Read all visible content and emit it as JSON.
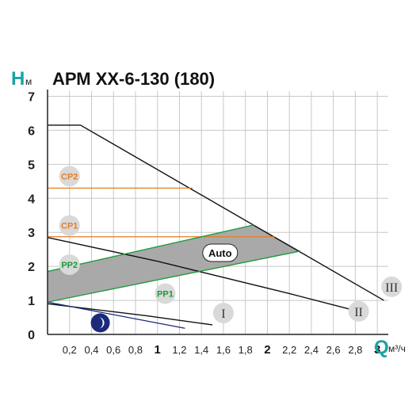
{
  "chart_data": {
    "type": "line",
    "title": "АРМ ХХ-6-130 (180)",
    "ylabel": "H",
    "ylabel_unit": "м",
    "xlabel": "Q",
    "xlabel_unit": "м³/ч",
    "xlim": [
      0,
      3.1
    ],
    "ylim": [
      0,
      7.15
    ],
    "grid": true,
    "x_ticks": [
      {
        "value": 0.2,
        "label": "0,2",
        "major": false
      },
      {
        "value": 0.4,
        "label": "0,4",
        "major": false
      },
      {
        "value": 0.6,
        "label": "0,6",
        "major": false
      },
      {
        "value": 0.8,
        "label": "0,8",
        "major": false
      },
      {
        "value": 1.0,
        "label": "1",
        "major": true
      },
      {
        "value": 1.2,
        "label": "1,2",
        "major": false
      },
      {
        "value": 1.4,
        "label": "1,4",
        "major": false
      },
      {
        "value": 1.6,
        "label": "1,6",
        "major": false
      },
      {
        "value": 1.8,
        "label": "1,8",
        "major": false
      },
      {
        "value": 2.0,
        "label": "2",
        "major": true
      },
      {
        "value": 2.2,
        "label": "2,2",
        "major": false
      },
      {
        "value": 2.4,
        "label": "2,4",
        "major": false
      },
      {
        "value": 2.6,
        "label": "2,6",
        "major": false
      },
      {
        "value": 2.8,
        "label": "2,8",
        "major": false
      },
      {
        "value": 3.0,
        "label": "3",
        "major": true
      }
    ],
    "y_ticks": [
      {
        "value": 0,
        "label": "0"
      },
      {
        "value": 1,
        "label": "1"
      },
      {
        "value": 2,
        "label": "2"
      },
      {
        "value": 3,
        "label": "3"
      },
      {
        "value": 4,
        "label": "4"
      },
      {
        "value": 5,
        "label": "5"
      },
      {
        "value": 6,
        "label": "6"
      },
      {
        "value": 7,
        "label": "7"
      }
    ],
    "series": [
      {
        "name": "III",
        "color": "#111111",
        "points": [
          [
            0.0,
            6.15
          ],
          [
            0.3,
            6.15
          ],
          [
            3.06,
            1.0
          ]
        ]
      },
      {
        "name": "II",
        "color": "#111111",
        "points": [
          [
            0.0,
            2.85
          ],
          [
            1.0,
            2.15
          ],
          [
            2.2,
            1.2
          ],
          [
            2.8,
            0.7
          ]
        ]
      },
      {
        "name": "I",
        "color": "#111111",
        "points": [
          [
            0.0,
            0.9
          ],
          [
            0.9,
            0.55
          ],
          [
            1.5,
            0.28
          ]
        ]
      },
      {
        "name": "night",
        "color": "#1b2a7a",
        "points": [
          [
            0.0,
            0.95
          ],
          [
            1.25,
            0.18
          ]
        ]
      },
      {
        "name": "CP2",
        "color": "#e67e22",
        "points": [
          [
            0.0,
            4.3
          ],
          [
            1.32,
            4.3
          ]
        ]
      },
      {
        "name": "CP1",
        "color": "#e67e22",
        "points": [
          [
            0.0,
            2.87
          ],
          [
            2.07,
            2.87
          ]
        ]
      },
      {
        "name": "PP2",
        "color": "#1a9a3a",
        "points": [
          [
            0.0,
            1.85
          ],
          [
            1.88,
            3.22
          ]
        ]
      },
      {
        "name": "PP1",
        "color": "#1a9a3a",
        "points": [
          [
            0.0,
            0.95
          ],
          [
            2.3,
            2.45
          ]
        ]
      }
    ],
    "auto_region": {
      "color": "#a9a9a9",
      "points": [
        [
          0.0,
          1.85
        ],
        [
          1.88,
          3.22
        ],
        [
          2.3,
          2.45
        ],
        [
          0.0,
          0.95
        ]
      ]
    },
    "badges": [
      {
        "id": "cp2",
        "label": "CP2",
        "x": 0.2,
        "y": 4.65,
        "text_color": "#e67e22"
      },
      {
        "id": "cp1",
        "label": "CP1",
        "x": 0.2,
        "y": 3.2,
        "text_color": "#e67e22"
      },
      {
        "id": "pp2",
        "label": "PP2",
        "x": 0.2,
        "y": 2.05,
        "text_color": "#1a9a3a"
      },
      {
        "id": "pp1",
        "label": "PP1",
        "x": 1.07,
        "y": 1.2,
        "text_color": "#1a9a3a"
      },
      {
        "id": "auto",
        "label": "Auto",
        "x": 1.57,
        "y": 2.4,
        "text_color": "#111111"
      },
      {
        "id": "i",
        "label": "I",
        "x": 1.6,
        "y": 0.63,
        "text_color": "#333333"
      },
      {
        "id": "ii",
        "label": "II",
        "x": 2.83,
        "y": 0.68,
        "text_color": "#333333"
      },
      {
        "id": "iii",
        "label": "III",
        "x": 3.13,
        "y": 1.4,
        "text_color": "#333333"
      }
    ]
  },
  "colors": {
    "grid": "#c8c8c8",
    "axis": "#222222",
    "badge_fill": "#d9d9d9",
    "night_icon": "#1b2a7a"
  },
  "icons": {
    "night_mode": "moon-icon"
  }
}
